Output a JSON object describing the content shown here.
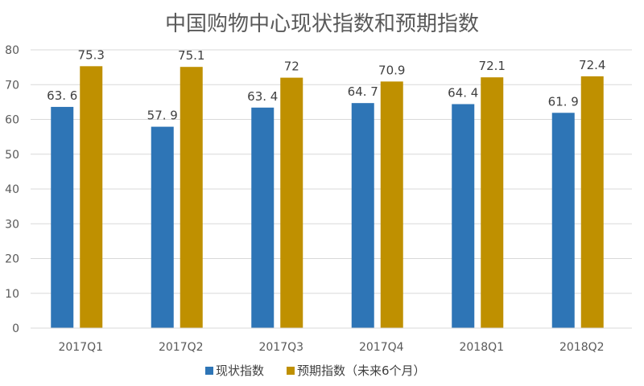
{
  "chart_data": {
    "type": "bar",
    "title": "中国购物中心现状指数和预期指数",
    "categories": [
      "2017Q1",
      "2017Q2",
      "2017Q3",
      "2017Q4",
      "2018Q1",
      "2018Q2"
    ],
    "series": [
      {
        "name": "现状指数",
        "color": "#2E75B6",
        "values": [
          63.6,
          57.9,
          63.4,
          64.7,
          64.4,
          61.9
        ],
        "labels": [
          "63. 6",
          "57. 9",
          "63. 4",
          "64. 7",
          "64. 4",
          "61. 9"
        ]
      },
      {
        "name": "预期指数（未来6个月）",
        "color": "#BF9000",
        "values": [
          75.3,
          75.1,
          72,
          70.9,
          72.1,
          72.4
        ],
        "labels": [
          "75.3",
          "75.1",
          "72",
          "70.9",
          "72.1",
          "72.4"
        ]
      }
    ],
    "ylim": [
      0,
      80
    ],
    "yticks": [
      0,
      10,
      20,
      30,
      40,
      50,
      60,
      70,
      80
    ],
    "grid": true,
    "legend": "bottom"
  }
}
